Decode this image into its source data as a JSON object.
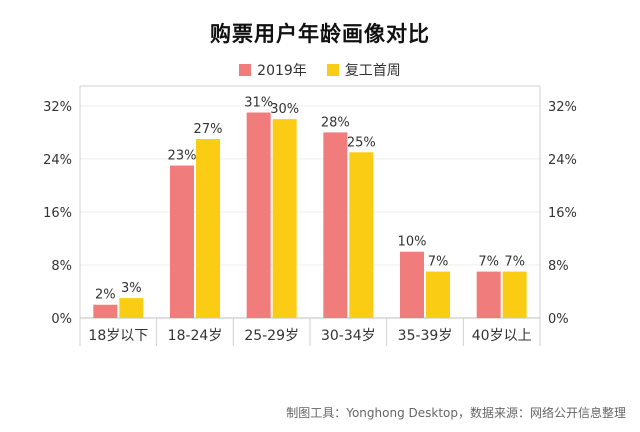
{
  "chart_data": {
    "type": "bar",
    "title": "购票用户年龄画像对比",
    "categories": [
      "18岁以下",
      "18-24岁",
      "25-29岁",
      "30-34岁",
      "35-39岁",
      "40岁以上"
    ],
    "series": [
      {
        "name": "2019年",
        "values": [
          2,
          23,
          31,
          28,
          10,
          7
        ],
        "labels": [
          "2%",
          "23%",
          "31%",
          "28%",
          "10%",
          "7%"
        ],
        "color": "#F07C7C"
      },
      {
        "name": "复工首周",
        "values": [
          3,
          27,
          30,
          25,
          7,
          7
        ],
        "labels": [
          "3%",
          "27%",
          "30%",
          "25%",
          "7%",
          "7%"
        ],
        "color": "#FACC14"
      }
    ],
    "ylim": [
      0,
      35
    ],
    "yticks": [
      0,
      8,
      16,
      24,
      32
    ],
    "ytick_labels": [
      "0%",
      "8%",
      "16%",
      "24%",
      "32%"
    ],
    "y_axis_both_sides": true,
    "grid": true,
    "legend_position": "top-center"
  },
  "footer": "制图工具：Yonghong Desktop，数据来源：网络公开信息整理"
}
